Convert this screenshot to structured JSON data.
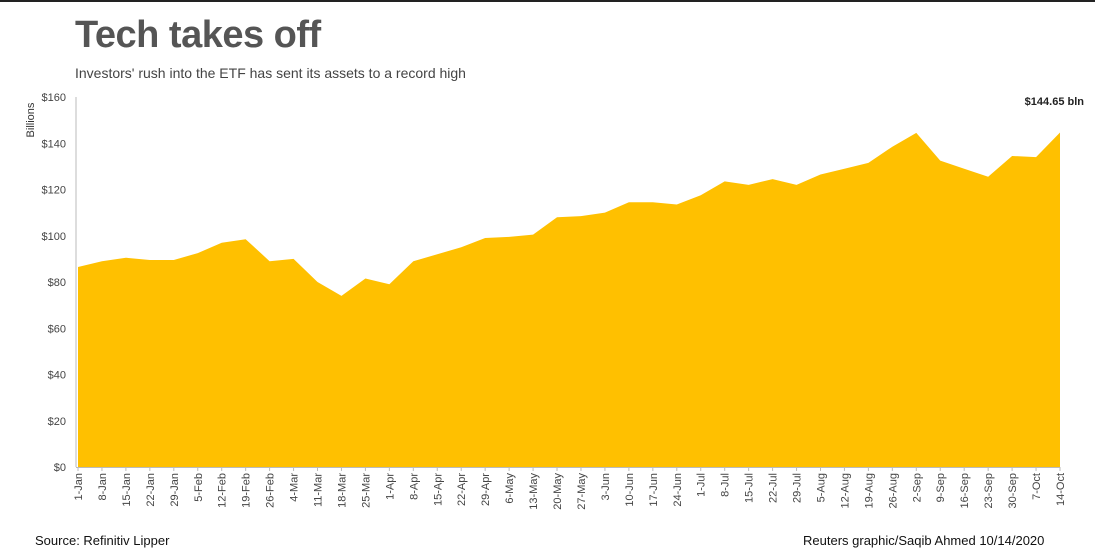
{
  "header": {
    "title": "Tech takes off",
    "subtitle": "Investors' rush into the ETF has sent its assets to a record high"
  },
  "footer": {
    "source": "Source: Refinitiv Lipper",
    "credit": "Reuters graphic/Saqib Ahmed  10/14/2020"
  },
  "colors": {
    "area": "#FFC000",
    "axis": "#555555"
  },
  "chart_data": {
    "type": "area",
    "title": "Tech takes off",
    "subtitle": "Investors' rush into the ETF has sent its assets to a record high",
    "ylabel": "Billions",
    "xlabel": "",
    "ylim": [
      0,
      160
    ],
    "yticks": [
      0,
      20,
      40,
      60,
      80,
      100,
      120,
      140,
      160
    ],
    "ytick_labels": [
      "$0",
      "$20",
      "$40",
      "$60",
      "$80",
      "$100",
      "$120",
      "$140",
      "$160"
    ],
    "grid": false,
    "categories": [
      "1-Jan",
      "8-Jan",
      "15-Jan",
      "22-Jan",
      "29-Jan",
      "5-Feb",
      "12-Feb",
      "19-Feb",
      "26-Feb",
      "4-Mar",
      "11-Mar",
      "18-Mar",
      "25-Mar",
      "1-Apr",
      "8-Apr",
      "15-Apr",
      "22-Apr",
      "29-Apr",
      "6-May",
      "13-May",
      "20-May",
      "27-May",
      "3-Jun",
      "10-Jun",
      "17-Jun",
      "24-Jun",
      "1-Jul",
      "8-Jul",
      "15-Jul",
      "22-Jul",
      "29-Jul",
      "5-Aug",
      "12-Aug",
      "19-Aug",
      "26-Aug",
      "2-Sep",
      "9-Sep",
      "16-Sep",
      "23-Sep",
      "30-Sep",
      "7-Oct",
      "14-Oct"
    ],
    "series": [
      {
        "values": [
          86.5,
          89,
          90.5,
          89.5,
          89.5,
          92.5,
          97,
          98.5,
          89,
          90,
          80,
          74,
          81.5,
          79,
          89,
          92,
          95,
          99,
          99.5,
          100.5,
          108,
          108.5,
          110,
          114.5,
          114.5,
          113.5,
          117.5,
          123.5,
          122,
          124.5,
          122,
          126.5,
          129,
          131.5,
          138.5,
          144.5,
          132.5,
          129,
          125.5,
          134.5,
          134,
          144.65
        ]
      }
    ],
    "annotations": [
      {
        "text": "$144.65 bln"
      }
    ]
  }
}
